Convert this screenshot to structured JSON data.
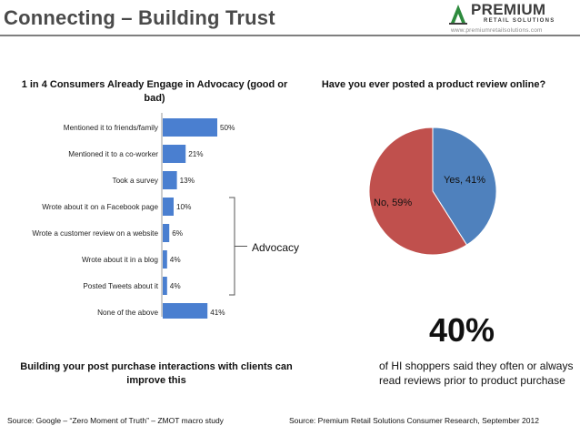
{
  "header": {
    "title": "Connecting – Building Trust",
    "logo_word": "PREMIUM",
    "logo_subtitle": "RETAIL SOLUTIONS",
    "logo_url": "www.premiumretailsolutions.com"
  },
  "left_panel": {
    "heading": "1 in 4 Consumers Already Engage in Advocacy (good or bad)",
    "advocacy_label": "Advocacy",
    "bottom_text": "Building your post purchase interactions with clients can improve this",
    "source": "Source: Google – “Zero Moment of Truth” – ZMOT macro study"
  },
  "right_panel": {
    "heading": "Have you ever posted a product review online?",
    "yes_label": "Yes, 41%",
    "no_label": "No, 59%",
    "big_stat": "40%",
    "stat_text": "of HI shoppers said they often or always read reviews prior to product purchase",
    "source": "Source: Premium Retail Solutions Consumer Research, September 2012"
  },
  "colors": {
    "bar": "#4a7fd0",
    "pie_yes": "#4f81bd",
    "pie_no": "#c0504d",
    "title": "#4a4a4a",
    "logo_green": "#2e8b3e"
  },
  "chart_data": [
    {
      "type": "bar",
      "orientation": "horizontal",
      "title": "1 in 4 Consumers Already Engage in Advocacy (good or bad)",
      "categories": [
        "Mentioned it to friends/family",
        "Mentioned it to a co-worker",
        "Took a survey",
        "Wrote about it on a Facebook page",
        "Wrote a customer review on a website",
        "Wrote about it in a blog",
        "Posted Tweets about it",
        "None of the above"
      ],
      "values": [
        50,
        21,
        13,
        10,
        6,
        4,
        4,
        41
      ],
      "value_labels": [
        "50%",
        "21%",
        "13%",
        "10%",
        "6%",
        "4%",
        "4%",
        "41%"
      ],
      "unit": "%",
      "xlim": [
        0,
        50
      ],
      "grid": false,
      "bracket_group": {
        "label": "Advocacy",
        "categories": [
          "Wrote about it on a Facebook page",
          "Wrote a customer review on a website",
          "Wrote about it in a blog",
          "Posted Tweets about it"
        ]
      }
    },
    {
      "type": "pie",
      "title": "Have you ever posted a product review online?",
      "labels": [
        "Yes",
        "No"
      ],
      "values": [
        41,
        59
      ],
      "unit": "%",
      "colors": [
        "#4f81bd",
        "#c0504d"
      ]
    }
  ]
}
